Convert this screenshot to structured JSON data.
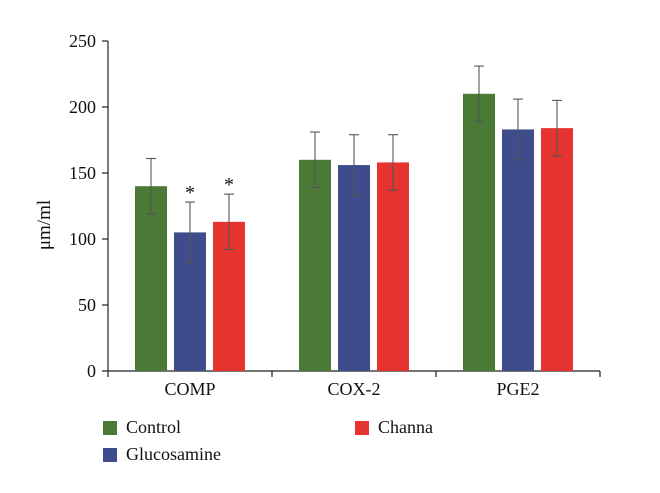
{
  "chart_data": {
    "type": "bar",
    "ylabel": "μm/ml",
    "ylim": [
      0,
      250
    ],
    "yticks": [
      0,
      50,
      100,
      150,
      200,
      250
    ],
    "grid": false,
    "legend_placement": "bottom",
    "categories": [
      "COMP",
      "COX-2",
      "PGE2"
    ],
    "series": [
      {
        "name": "Control",
        "color": "#4a7a35",
        "values": [
          140,
          160,
          210
        ],
        "errors": [
          21,
          21,
          21
        ],
        "significance": [
          "",
          "",
          ""
        ]
      },
      {
        "name": "Glucosamine",
        "color": "#3e4c8c",
        "values": [
          105,
          156,
          183
        ],
        "errors": [
          23,
          23,
          23
        ],
        "significance": [
          "*",
          "",
          ""
        ]
      },
      {
        "name": "Channa",
        "color": "#e53330",
        "values": [
          113,
          158,
          184
        ],
        "errors": [
          21,
          21,
          21
        ],
        "significance": [
          "*",
          "",
          ""
        ]
      }
    ]
  }
}
